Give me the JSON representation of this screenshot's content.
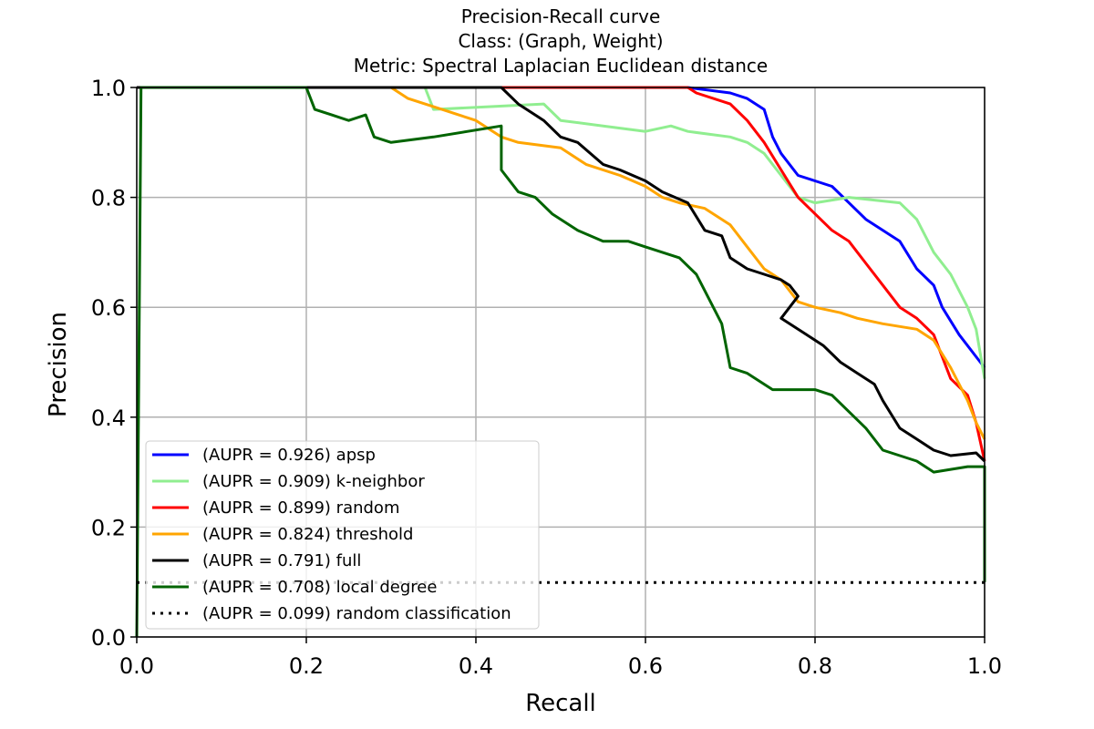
{
  "chart_data": {
    "type": "line",
    "title_lines": [
      "Precision-Recall curve",
      "Class: (Graph, Weight)",
      "Metric: Spectral Laplacian Euclidean distance"
    ],
    "xlabel": "Recall",
    "ylabel": "Precision",
    "xlim": [
      0.0,
      1.0
    ],
    "ylim": [
      0.0,
      1.0
    ],
    "xticks": [
      "0.0",
      "0.2",
      "0.4",
      "0.6",
      "0.8",
      "1.0"
    ],
    "yticks": [
      "0.0",
      "0.2",
      "0.4",
      "0.6",
      "0.8",
      "1.0"
    ],
    "grid": true,
    "legend_position": "lower-left",
    "series": [
      {
        "name": "(AUPR = 0.926) apsp",
        "color": "#0000ff",
        "style": "solid",
        "points": [
          [
            0.0,
            1.0
          ],
          [
            0.65,
            1.0
          ],
          [
            0.7,
            0.99
          ],
          [
            0.72,
            0.98
          ],
          [
            0.74,
            0.96
          ],
          [
            0.75,
            0.91
          ],
          [
            0.76,
            0.88
          ],
          [
            0.78,
            0.84
          ],
          [
            0.8,
            0.83
          ],
          [
            0.82,
            0.82
          ],
          [
            0.84,
            0.79
          ],
          [
            0.86,
            0.76
          ],
          [
            0.88,
            0.74
          ],
          [
            0.9,
            0.72
          ],
          [
            0.92,
            0.67
          ],
          [
            0.94,
            0.64
          ],
          [
            0.95,
            0.6
          ],
          [
            0.97,
            0.55
          ],
          [
            0.99,
            0.51
          ],
          [
            1.0,
            0.49
          ]
        ]
      },
      {
        "name": "(AUPR = 0.909) k-neighbor",
        "color": "#90ee90",
        "style": "solid",
        "points": [
          [
            0.0,
            1.0
          ],
          [
            0.34,
            1.0
          ],
          [
            0.35,
            0.96
          ],
          [
            0.48,
            0.97
          ],
          [
            0.5,
            0.94
          ],
          [
            0.55,
            0.93
          ],
          [
            0.6,
            0.92
          ],
          [
            0.63,
            0.93
          ],
          [
            0.65,
            0.92
          ],
          [
            0.7,
            0.91
          ],
          [
            0.72,
            0.9
          ],
          [
            0.74,
            0.88
          ],
          [
            0.76,
            0.84
          ],
          [
            0.78,
            0.8
          ],
          [
            0.8,
            0.79
          ],
          [
            0.84,
            0.8
          ],
          [
            0.9,
            0.79
          ],
          [
            0.92,
            0.76
          ],
          [
            0.94,
            0.7
          ],
          [
            0.96,
            0.66
          ],
          [
            0.98,
            0.6
          ],
          [
            0.99,
            0.56
          ],
          [
            1.0,
            0.47
          ]
        ]
      },
      {
        "name": "(AUPR = 0.899) random",
        "color": "#ff0000",
        "style": "solid",
        "points": [
          [
            0.0,
            1.0
          ],
          [
            0.65,
            1.0
          ],
          [
            0.66,
            0.99
          ],
          [
            0.7,
            0.97
          ],
          [
            0.72,
            0.94
          ],
          [
            0.74,
            0.9
          ],
          [
            0.76,
            0.85
          ],
          [
            0.78,
            0.8
          ],
          [
            0.8,
            0.77
          ],
          [
            0.82,
            0.74
          ],
          [
            0.84,
            0.72
          ],
          [
            0.85,
            0.7
          ],
          [
            0.86,
            0.68
          ],
          [
            0.88,
            0.64
          ],
          [
            0.9,
            0.6
          ],
          [
            0.92,
            0.58
          ],
          [
            0.94,
            0.55
          ],
          [
            0.95,
            0.51
          ],
          [
            0.96,
            0.47
          ],
          [
            0.98,
            0.44
          ],
          [
            0.99,
            0.39
          ],
          [
            1.0,
            0.32
          ]
        ]
      },
      {
        "name": "(AUPR = 0.824) threshold",
        "color": "#ffa500",
        "style": "solid",
        "points": [
          [
            0.0,
            1.0
          ],
          [
            0.3,
            1.0
          ],
          [
            0.32,
            0.98
          ],
          [
            0.36,
            0.96
          ],
          [
            0.4,
            0.94
          ],
          [
            0.43,
            0.91
          ],
          [
            0.45,
            0.9
          ],
          [
            0.5,
            0.89
          ],
          [
            0.53,
            0.86
          ],
          [
            0.57,
            0.84
          ],
          [
            0.6,
            0.82
          ],
          [
            0.62,
            0.8
          ],
          [
            0.64,
            0.79
          ],
          [
            0.67,
            0.78
          ],
          [
            0.7,
            0.75
          ],
          [
            0.72,
            0.71
          ],
          [
            0.74,
            0.67
          ],
          [
            0.76,
            0.65
          ],
          [
            0.78,
            0.61
          ],
          [
            0.8,
            0.6
          ],
          [
            0.83,
            0.59
          ],
          [
            0.85,
            0.58
          ],
          [
            0.88,
            0.57
          ],
          [
            0.92,
            0.56
          ],
          [
            0.94,
            0.54
          ],
          [
            0.96,
            0.49
          ],
          [
            0.98,
            0.43
          ],
          [
            0.99,
            0.39
          ],
          [
            1.0,
            0.36
          ]
        ]
      },
      {
        "name": "(AUPR = 0.791) full",
        "color": "#000000",
        "style": "solid",
        "points": [
          [
            0.0,
            1.0
          ],
          [
            0.43,
            1.0
          ],
          [
            0.45,
            0.97
          ],
          [
            0.48,
            0.94
          ],
          [
            0.5,
            0.91
          ],
          [
            0.52,
            0.9
          ],
          [
            0.55,
            0.86
          ],
          [
            0.57,
            0.85
          ],
          [
            0.6,
            0.83
          ],
          [
            0.62,
            0.81
          ],
          [
            0.65,
            0.79
          ],
          [
            0.67,
            0.74
          ],
          [
            0.69,
            0.73
          ],
          [
            0.7,
            0.69
          ],
          [
            0.72,
            0.67
          ],
          [
            0.74,
            0.66
          ],
          [
            0.76,
            0.65
          ],
          [
            0.77,
            0.64
          ],
          [
            0.78,
            0.62
          ],
          [
            0.76,
            0.58
          ],
          [
            0.79,
            0.55
          ],
          [
            0.81,
            0.53
          ],
          [
            0.83,
            0.5
          ],
          [
            0.85,
            0.48
          ],
          [
            0.87,
            0.46
          ],
          [
            0.88,
            0.43
          ],
          [
            0.9,
            0.38
          ],
          [
            0.92,
            0.36
          ],
          [
            0.94,
            0.34
          ],
          [
            0.96,
            0.33
          ],
          [
            0.99,
            0.335
          ],
          [
            1.0,
            0.32
          ]
        ]
      },
      {
        "name": "(AUPR = 0.708) local degree",
        "color": "#006400",
        "style": "solid",
        "points": [
          [
            0.0,
            0.0
          ],
          [
            0.005,
            1.0
          ],
          [
            0.2,
            1.0
          ],
          [
            0.21,
            0.96
          ],
          [
            0.23,
            0.95
          ],
          [
            0.25,
            0.94
          ],
          [
            0.27,
            0.95
          ],
          [
            0.28,
            0.91
          ],
          [
            0.3,
            0.9
          ],
          [
            0.35,
            0.91
          ],
          [
            0.43,
            0.93
          ],
          [
            0.43,
            0.85
          ],
          [
            0.45,
            0.81
          ],
          [
            0.47,
            0.8
          ],
          [
            0.49,
            0.77
          ],
          [
            0.5,
            0.76
          ],
          [
            0.52,
            0.74
          ],
          [
            0.55,
            0.72
          ],
          [
            0.58,
            0.72
          ],
          [
            0.6,
            0.71
          ],
          [
            0.62,
            0.7
          ],
          [
            0.64,
            0.69
          ],
          [
            0.66,
            0.66
          ],
          [
            0.67,
            0.63
          ],
          [
            0.68,
            0.6
          ],
          [
            0.69,
            0.57
          ],
          [
            0.7,
            0.49
          ],
          [
            0.72,
            0.48
          ],
          [
            0.75,
            0.45
          ],
          [
            0.8,
            0.45
          ],
          [
            0.82,
            0.44
          ],
          [
            0.84,
            0.41
          ],
          [
            0.86,
            0.38
          ],
          [
            0.88,
            0.34
          ],
          [
            0.9,
            0.33
          ],
          [
            0.92,
            0.32
          ],
          [
            0.94,
            0.3
          ],
          [
            0.98,
            0.31
          ],
          [
            1.0,
            0.31
          ],
          [
            1.0,
            0.1
          ]
        ]
      },
      {
        "name": "(AUPR = 0.099) random classification",
        "color": "#000000",
        "style": "dotted",
        "points": [
          [
            0.0,
            0.099
          ],
          [
            1.0,
            0.099
          ]
        ]
      }
    ]
  }
}
